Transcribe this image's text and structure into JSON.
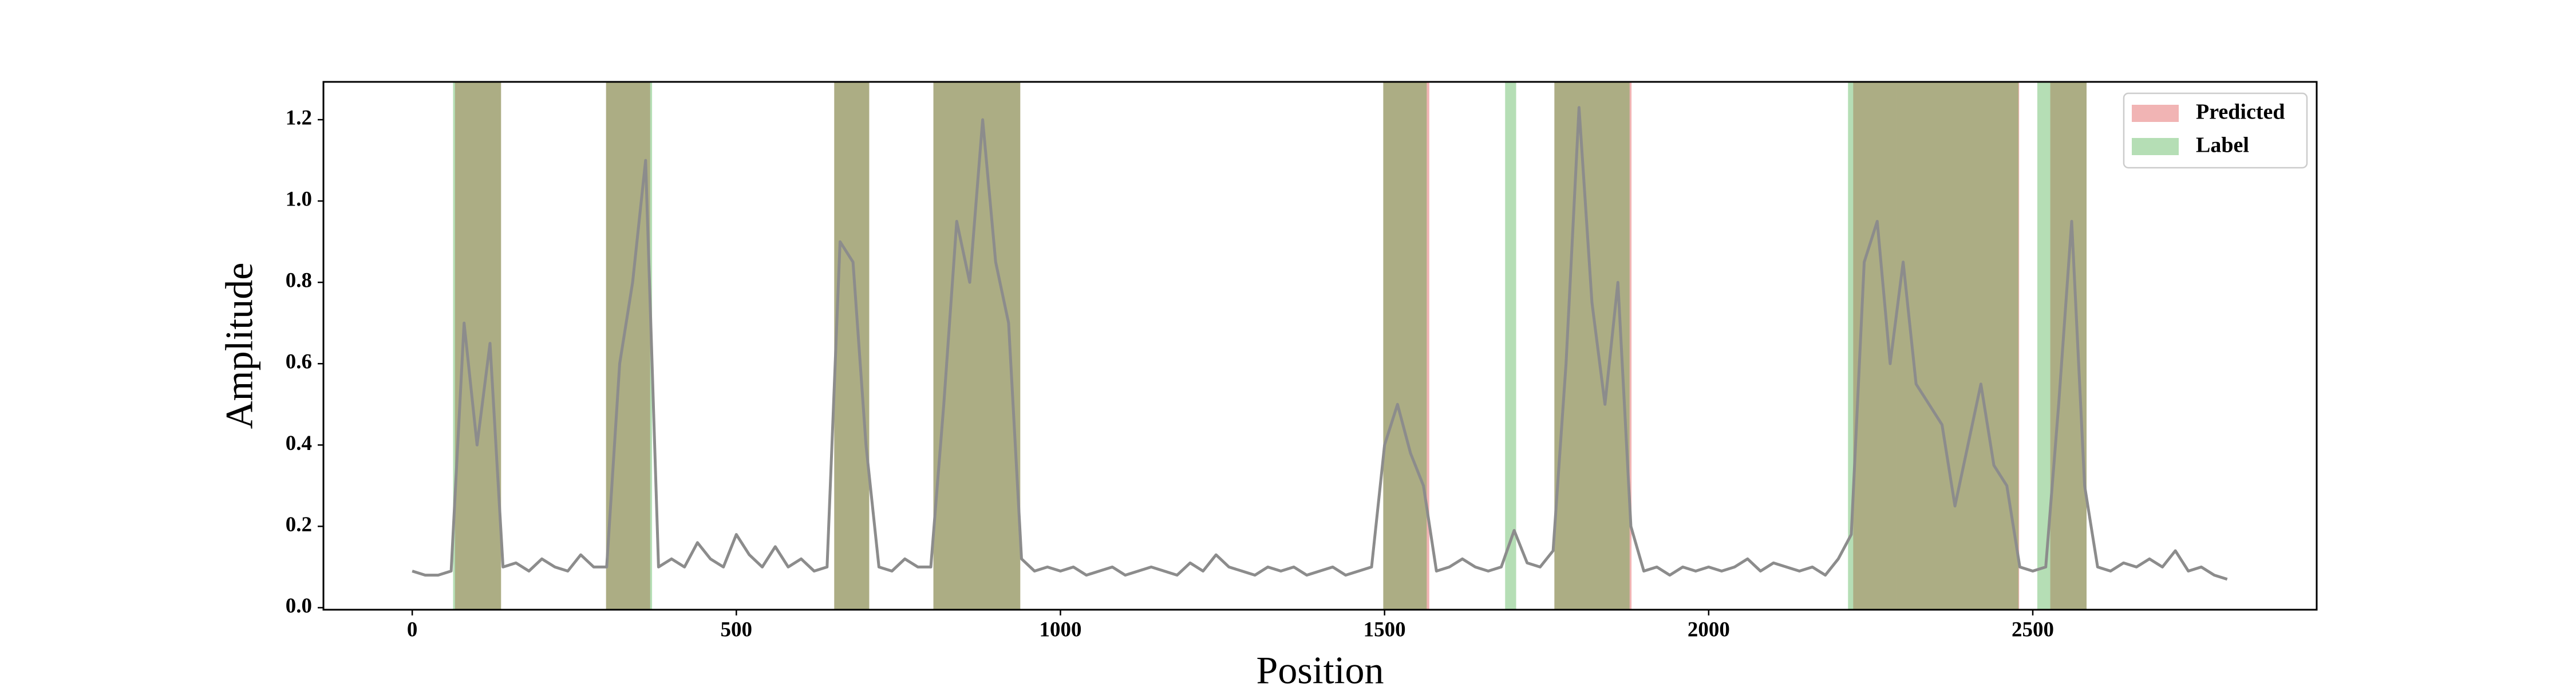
{
  "chart_data": {
    "type": "line",
    "xlabel": "Position",
    "ylabel": "Amplitude",
    "xlim": [
      -137,
      2938
    ],
    "ylim": [
      -0.005,
      1.293
    ],
    "xticks": [
      0,
      500,
      1000,
      1500,
      2000,
      2500
    ],
    "yticks": [
      {
        "value": 0,
        "label": "0.0"
      },
      {
        "value": 0.2,
        "label": "0.2"
      },
      {
        "value": 0.4,
        "label": "0.4"
      },
      {
        "value": 0.6,
        "label": "0.6"
      },
      {
        "value": 0.8,
        "label": "0.8"
      },
      {
        "value": 1,
        "label": "1.0"
      },
      {
        "value": 1.2,
        "label": "1.2"
      }
    ],
    "legend": "upper right",
    "spans": [
      {
        "name": "Predicted",
        "color": "#d62728",
        "alpha": 0.35,
        "ranges": [
          [
            66,
            137
          ],
          [
            299,
            367
          ],
          [
            651,
            705
          ],
          [
            804,
            938
          ],
          [
            1498,
            1569
          ],
          [
            1762,
            1881
          ],
          [
            2223,
            2479
          ],
          [
            2527,
            2583
          ]
        ]
      },
      {
        "name": "Label",
        "color": "#2ca02c",
        "alpha": 0.35,
        "ranges": [
          [
            63,
            137
          ],
          [
            299,
            370
          ],
          [
            651,
            705
          ],
          [
            804,
            938
          ],
          [
            1498,
            1565
          ],
          [
            1686,
            1703
          ],
          [
            1762,
            1878
          ],
          [
            2215,
            2289
          ],
          [
            2289,
            2478
          ],
          [
            2507,
            2583
          ]
        ]
      }
    ],
    "series": [
      {
        "color": "#8c8c8c",
        "x": [
          0,
          20,
          40,
          60,
          80,
          100,
          120,
          140,
          160,
          180,
          200,
          220,
          240,
          260,
          280,
          300,
          320,
          340,
          360,
          380,
          400,
          420,
          440,
          460,
          480,
          500,
          520,
          540,
          560,
          580,
          600,
          620,
          640,
          660,
          680,
          700,
          720,
          740,
          760,
          780,
          800,
          820,
          840,
          860,
          880,
          900,
          920,
          940,
          960,
          980,
          1000,
          1020,
          1040,
          1060,
          1080,
          1100,
          1120,
          1140,
          1160,
          1180,
          1200,
          1220,
          1240,
          1260,
          1280,
          1300,
          1320,
          1340,
          1360,
          1380,
          1400,
          1420,
          1440,
          1460,
          1480,
          1500,
          1520,
          1540,
          1560,
          1580,
          1600,
          1620,
          1640,
          1660,
          1680,
          1700,
          1720,
          1740,
          1760,
          1780,
          1800,
          1820,
          1840,
          1860,
          1880,
          1900,
          1920,
          1940,
          1960,
          1980,
          2000,
          2020,
          2040,
          2060,
          2080,
          2100,
          2120,
          2140,
          2160,
          2180,
          2200,
          2220,
          2240,
          2260,
          2280,
          2300,
          2320,
          2340,
          2360,
          2380,
          2400,
          2420,
          2440,
          2460,
          2480,
          2500,
          2520,
          2540,
          2560,
          2580,
          2600,
          2620,
          2640,
          2660,
          2680,
          2700,
          2720,
          2740,
          2760,
          2780,
          2800
        ],
        "values": [
          0.09,
          0.08,
          0.08,
          0.09,
          0.7,
          0.4,
          0.65,
          0.1,
          0.11,
          0.09,
          0.12,
          0.1,
          0.09,
          0.13,
          0.1,
          0.1,
          0.6,
          0.8,
          1.1,
          0.1,
          0.12,
          0.1,
          0.16,
          0.12,
          0.1,
          0.18,
          0.13,
          0.1,
          0.15,
          0.1,
          0.12,
          0.09,
          0.1,
          0.9,
          0.85,
          0.4,
          0.1,
          0.09,
          0.12,
          0.1,
          0.1,
          0.5,
          0.95,
          0.8,
          1.2,
          0.85,
          0.7,
          0.12,
          0.09,
          0.1,
          0.09,
          0.1,
          0.08,
          0.09,
          0.1,
          0.08,
          0.09,
          0.1,
          0.09,
          0.08,
          0.11,
          0.09,
          0.13,
          0.1,
          0.09,
          0.08,
          0.1,
          0.09,
          0.1,
          0.08,
          0.09,
          0.1,
          0.08,
          0.09,
          0.1,
          0.4,
          0.5,
          0.38,
          0.3,
          0.09,
          0.1,
          0.12,
          0.1,
          0.09,
          0.1,
          0.19,
          0.11,
          0.1,
          0.14,
          0.6,
          1.23,
          0.75,
          0.5,
          0.8,
          0.2,
          0.09,
          0.1,
          0.08,
          0.1,
          0.09,
          0.1,
          0.09,
          0.1,
          0.12,
          0.09,
          0.11,
          0.1,
          0.09,
          0.1,
          0.08,
          0.12,
          0.18,
          0.85,
          0.95,
          0.6,
          0.85,
          0.55,
          0.5,
          0.45,
          0.25,
          0.4,
          0.55,
          0.35,
          0.3,
          0.1,
          0.09,
          0.1,
          0.5,
          0.95,
          0.3,
          0.1,
          0.09,
          0.11,
          0.1,
          0.12,
          0.1,
          0.14,
          0.09,
          0.1,
          0.08,
          0.07
        ]
      }
    ]
  }
}
